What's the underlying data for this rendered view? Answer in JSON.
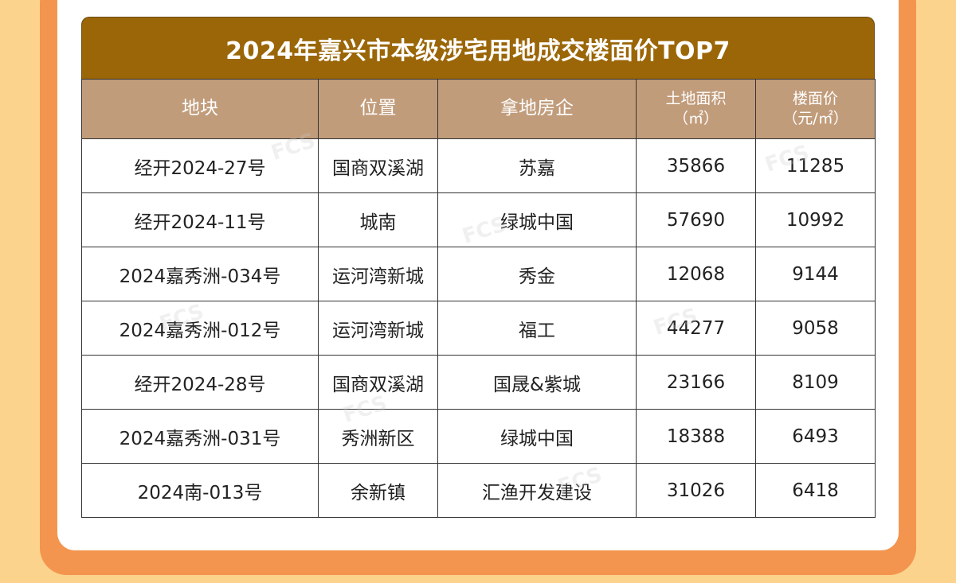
{
  "table": {
    "title": "2024年嘉兴市本级涉宅用地成交楼面价TOP7",
    "headers": {
      "plot": "地块",
      "location": "位置",
      "developer": "拿地房企",
      "area_label": "土地面积",
      "area_unit": "（㎡）",
      "price_label": "楼面价",
      "price_unit": "（元/㎡）"
    },
    "rows": [
      {
        "plot": "经开2024-27号",
        "location": "国商双溪湖",
        "developer": "苏嘉",
        "area": "35866",
        "price": "11285"
      },
      {
        "plot": "经开2024-11号",
        "location": "城南",
        "developer": "绿城中国",
        "area": "57690",
        "price": "10992"
      },
      {
        "plot": "2024嘉秀洲-034号",
        "location": "运河湾新城",
        "developer": "秀金",
        "area": "12068",
        "price": "9144"
      },
      {
        "plot": "2024嘉秀洲-012号",
        "location": "运河湾新城",
        "developer": "福工",
        "area": "44277",
        "price": "9058"
      },
      {
        "plot": "经开2024-28号",
        "location": "国商双溪湖",
        "developer": "国晟&紫城",
        "area": "23166",
        "price": "8109"
      },
      {
        "plot": "2024嘉秀洲-031号",
        "location": "秀洲新区",
        "developer": "绿城中国",
        "area": "18388",
        "price": "6493"
      },
      {
        "plot": "2024南-013号",
        "location": "余新镇",
        "developer": "汇渔开发建设",
        "area": "31026",
        "price": "6418"
      }
    ]
  },
  "colors": {
    "title_bg": "#9b6608",
    "header_bg": "#c19c7b",
    "frame": "#f3954e",
    "page_bg": "#fbd38c"
  }
}
